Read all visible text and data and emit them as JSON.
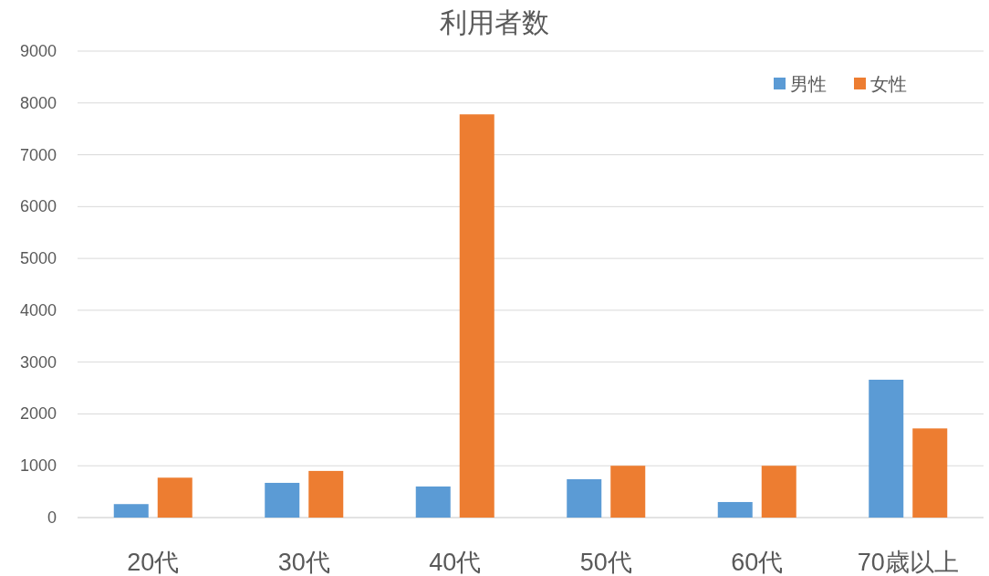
{
  "chart_data": {
    "type": "bar",
    "title": "利用者数",
    "categories": [
      "20代",
      "30代",
      "40代",
      "50代",
      "60代",
      "70歳以上"
    ],
    "series": [
      {
        "name": "男性",
        "color": "#5b9bd5",
        "values": [
          260,
          670,
          600,
          740,
          300,
          2660
        ]
      },
      {
        "name": "女性",
        "color": "#ed7d31",
        "values": [
          770,
          900,
          7780,
          1000,
          1000,
          1720
        ]
      }
    ],
    "ylim": [
      0,
      9000
    ],
    "yticks": [
      0,
      1000,
      2000,
      3000,
      4000,
      5000,
      6000,
      7000,
      8000,
      9000
    ],
    "grid": "y",
    "legend": "top right"
  }
}
